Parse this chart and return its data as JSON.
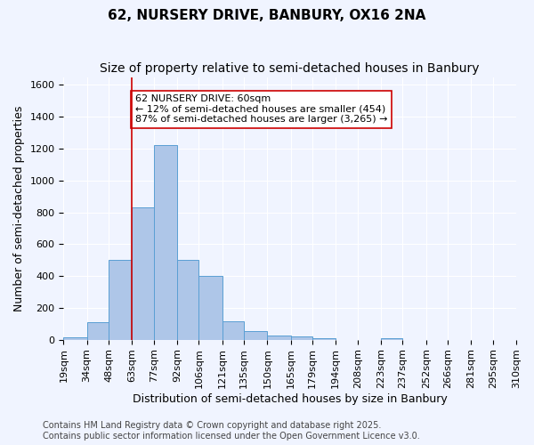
{
  "title_line1": "62, NURSERY DRIVE, BANBURY, OX16 2NA",
  "title_line2": "Size of property relative to semi-detached houses in Banbury",
  "xlabel": "Distribution of semi-detached houses by size in Banbury",
  "ylabel": "Number of semi-detached properties",
  "bin_labels": [
    "19sqm",
    "34sqm",
    "48sqm",
    "63sqm",
    "77sqm",
    "92sqm",
    "106sqm",
    "121sqm",
    "135sqm",
    "150sqm",
    "165sqm",
    "179sqm",
    "194sqm",
    "208sqm",
    "223sqm",
    "237sqm",
    "252sqm",
    "266sqm",
    "281sqm",
    "295sqm",
    "310sqm"
  ],
  "bin_edges": [
    19,
    34,
    48,
    63,
    77,
    92,
    106,
    121,
    135,
    150,
    165,
    179,
    194,
    208,
    223,
    237,
    252,
    266,
    281,
    295,
    310
  ],
  "bar_heights": [
    15,
    110,
    500,
    830,
    1220,
    500,
    400,
    115,
    55,
    25,
    20,
    10,
    0,
    0,
    10,
    0,
    0,
    0,
    0,
    0
  ],
  "bar_color": "#aec6e8",
  "bar_edge_color": "#5a9fd4",
  "ylim": [
    0,
    1650
  ],
  "yticks": [
    0,
    200,
    400,
    600,
    800,
    1000,
    1200,
    1400,
    1600
  ],
  "property_size": 60,
  "property_line_x": 63,
  "annotation_title": "62 NURSERY DRIVE: 60sqm",
  "annotation_line1": "← 12% of semi-detached houses are smaller (454)",
  "annotation_line2": "87% of semi-detached houses are larger (3,265) →",
  "annotation_box_color": "#ffffff",
  "annotation_box_edge": "#cc0000",
  "red_line_color": "#cc0000",
  "footer_line1": "Contains HM Land Registry data © Crown copyright and database right 2025.",
  "footer_line2": "Contains public sector information licensed under the Open Government Licence v3.0.",
  "bg_color": "#f0f4ff",
  "grid_color": "#ffffff",
  "title_fontsize": 11,
  "subtitle_fontsize": 10,
  "axis_label_fontsize": 9,
  "tick_fontsize": 8,
  "annotation_fontsize": 8,
  "footer_fontsize": 7
}
